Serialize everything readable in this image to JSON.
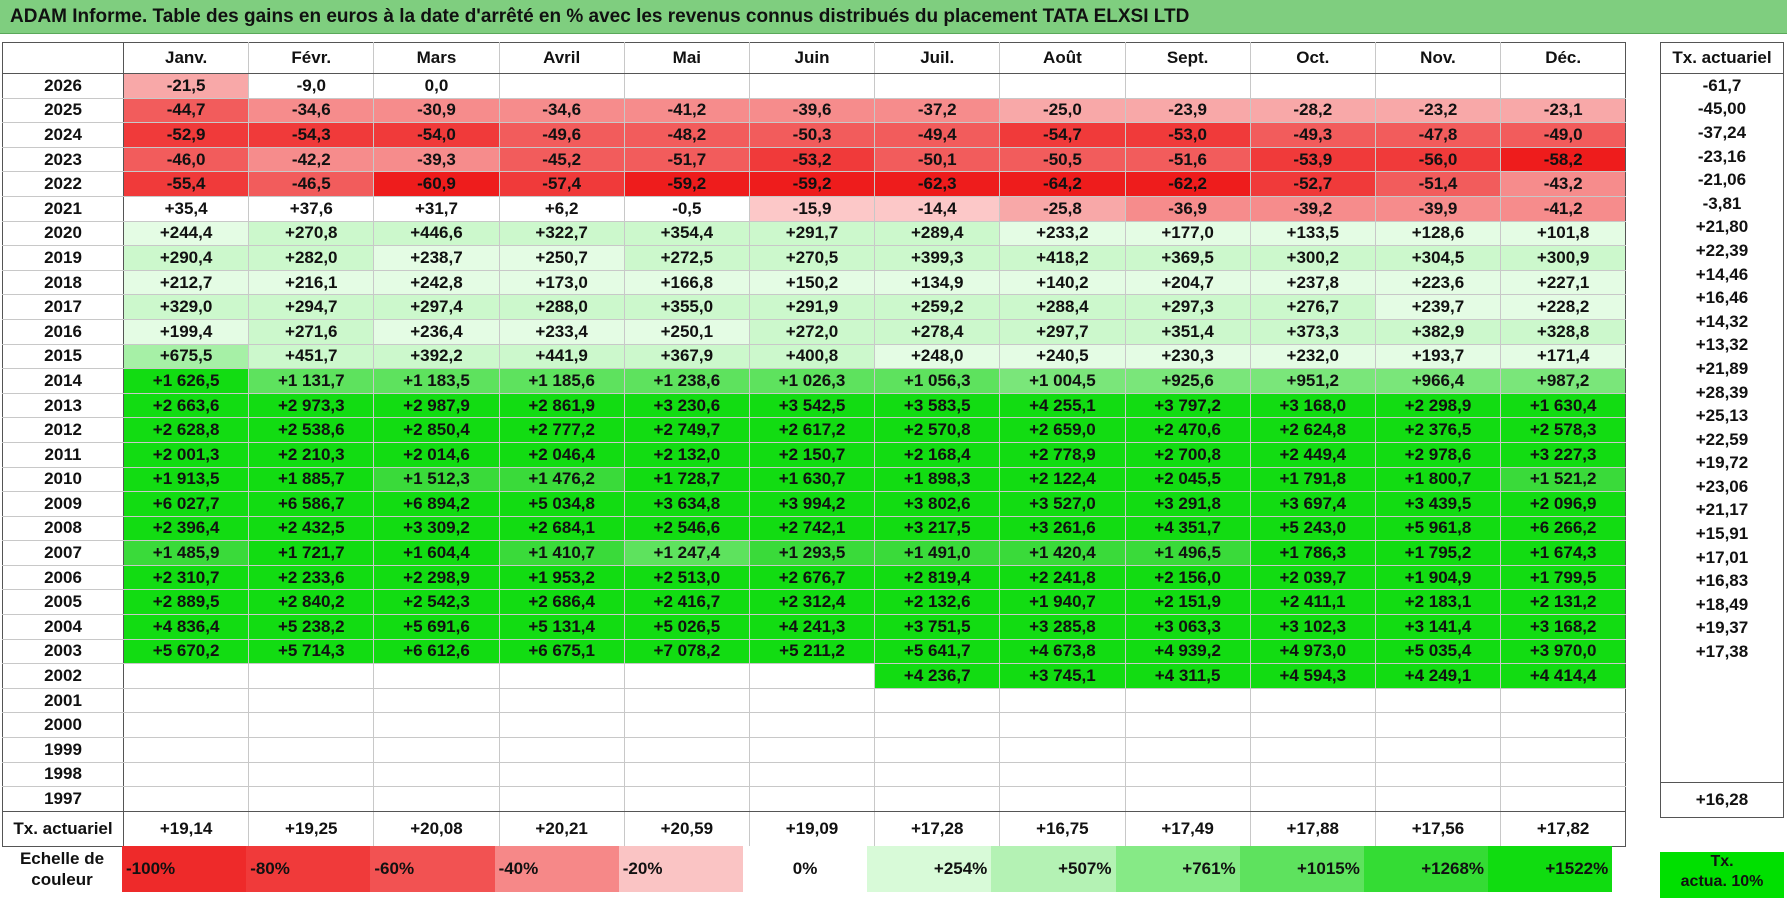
{
  "title": "ADAM Informe. Table des gains en euros à la date d'arrêté en % avec les revenus connus distribués du placement TATA ELXSI LTD",
  "months": [
    "Janv.",
    "Févr.",
    "Mars",
    "Avril",
    "Mai",
    "Juin",
    "Juil.",
    "Août",
    "Sept.",
    "Oct.",
    "Nov.",
    "Déc."
  ],
  "side_header": "Tx. actuariel",
  "rows": [
    {
      "year": "2026",
      "values": [
        "-21,5",
        "-9,0",
        "0,0",
        "",
        "",
        "",
        "",
        "",
        "",
        "",
        "",
        ""
      ],
      "tx": "-61,7"
    },
    {
      "year": "2025",
      "values": [
        "-44,7",
        "-34,6",
        "-30,9",
        "-34,6",
        "-41,2",
        "-39,6",
        "-37,2",
        "-25,0",
        "-23,9",
        "-28,2",
        "-23,2",
        "-23,1"
      ],
      "tx": "-45,00"
    },
    {
      "year": "2024",
      "values": [
        "-52,9",
        "-54,3",
        "-54,0",
        "-49,6",
        "-48,2",
        "-50,3",
        "-49,4",
        "-54,7",
        "-53,0",
        "-49,3",
        "-47,8",
        "-49,0"
      ],
      "tx": "-37,24"
    },
    {
      "year": "2023",
      "values": [
        "-46,0",
        "-42,2",
        "-39,3",
        "-45,2",
        "-51,7",
        "-53,2",
        "-50,1",
        "-50,5",
        "-51,6",
        "-53,9",
        "-56,0",
        "-58,2"
      ],
      "tx": "-23,16"
    },
    {
      "year": "2022",
      "values": [
        "-55,4",
        "-46,5",
        "-60,9",
        "-57,4",
        "-59,2",
        "-59,2",
        "-62,3",
        "-64,2",
        "-62,2",
        "-52,7",
        "-51,4",
        "-43,2"
      ],
      "tx": "-21,06"
    },
    {
      "year": "2021",
      "values": [
        "+35,4",
        "+37,6",
        "+31,7",
        "+6,2",
        "-0,5",
        "-15,9",
        "-14,4",
        "-25,8",
        "-36,9",
        "-39,2",
        "-39,9",
        "-41,2"
      ],
      "tx": "-3,81"
    },
    {
      "year": "2020",
      "values": [
        "+244,4",
        "+270,8",
        "+446,6",
        "+322,7",
        "+354,4",
        "+291,7",
        "+289,4",
        "+233,2",
        "+177,0",
        "+133,5",
        "+128,6",
        "+101,8"
      ],
      "tx": "+21,80"
    },
    {
      "year": "2019",
      "values": [
        "+290,4",
        "+282,0",
        "+238,7",
        "+250,7",
        "+272,5",
        "+270,5",
        "+399,3",
        "+418,2",
        "+369,5",
        "+300,2",
        "+304,5",
        "+300,9"
      ],
      "tx": "+22,39"
    },
    {
      "year": "2018",
      "values": [
        "+212,7",
        "+216,1",
        "+242,8",
        "+173,0",
        "+166,8",
        "+150,2",
        "+134,9",
        "+140,2",
        "+204,7",
        "+237,8",
        "+223,6",
        "+227,1"
      ],
      "tx": "+14,46"
    },
    {
      "year": "2017",
      "values": [
        "+329,0",
        "+294,7",
        "+297,4",
        "+288,0",
        "+355,0",
        "+291,9",
        "+259,2",
        "+288,4",
        "+297,3",
        "+276,7",
        "+239,7",
        "+228,2"
      ],
      "tx": "+16,46"
    },
    {
      "year": "2016",
      "values": [
        "+199,4",
        "+271,6",
        "+236,4",
        "+233,4",
        "+250,1",
        "+272,0",
        "+278,4",
        "+297,7",
        "+351,4",
        "+373,3",
        "+382,9",
        "+328,8"
      ],
      "tx": "+14,32"
    },
    {
      "year": "2015",
      "values": [
        "+675,5",
        "+451,7",
        "+392,2",
        "+441,9",
        "+367,9",
        "+400,8",
        "+248,0",
        "+240,5",
        "+230,3",
        "+232,0",
        "+193,7",
        "+171,4"
      ],
      "tx": "+13,32"
    },
    {
      "year": "2014",
      "values": [
        "+1 626,5",
        "+1 131,7",
        "+1 183,5",
        "+1 185,6",
        "+1 238,6",
        "+1 026,3",
        "+1 056,3",
        "+1 004,5",
        "+925,6",
        "+951,2",
        "+966,4",
        "+987,2"
      ],
      "tx": "+21,89"
    },
    {
      "year": "2013",
      "values": [
        "+2 663,6",
        "+2 973,3",
        "+2 987,9",
        "+2 861,9",
        "+3 230,6",
        "+3 542,5",
        "+3 583,5",
        "+4 255,1",
        "+3 797,2",
        "+3 168,0",
        "+2 298,9",
        "+1 630,4"
      ],
      "tx": "+28,39"
    },
    {
      "year": "2012",
      "values": [
        "+2 628,8",
        "+2 538,6",
        "+2 850,4",
        "+2 777,2",
        "+2 749,7",
        "+2 617,2",
        "+2 570,8",
        "+2 659,0",
        "+2 470,6",
        "+2 624,8",
        "+2 376,5",
        "+2 578,3"
      ],
      "tx": "+25,13"
    },
    {
      "year": "2011",
      "values": [
        "+2 001,3",
        "+2 210,3",
        "+2 014,6",
        "+2 046,4",
        "+2 132,0",
        "+2 150,7",
        "+2 168,4",
        "+2 778,9",
        "+2 700,8",
        "+2 449,4",
        "+2 978,6",
        "+3 227,3"
      ],
      "tx": "+22,59"
    },
    {
      "year": "2010",
      "values": [
        "+1 913,5",
        "+1 885,7",
        "+1 512,3",
        "+1 476,2",
        "+1 728,7",
        "+1 630,7",
        "+1 898,3",
        "+2 122,4",
        "+2 045,5",
        "+1 791,8",
        "+1 800,7",
        "+1 521,2"
      ],
      "tx": "+19,72"
    },
    {
      "year": "2009",
      "values": [
        "+6 027,7",
        "+6 586,7",
        "+6 894,2",
        "+5 034,8",
        "+3 634,8",
        "+3 994,2",
        "+3 802,6",
        "+3 527,0",
        "+3 291,8",
        "+3 697,4",
        "+3 439,5",
        "+2 096,9"
      ],
      "tx": "+23,06"
    },
    {
      "year": "2008",
      "values": [
        "+2 396,4",
        "+2 432,5",
        "+3 309,2",
        "+2 684,1",
        "+2 546,6",
        "+2 742,1",
        "+3 217,5",
        "+3 261,6",
        "+4 351,7",
        "+5 243,0",
        "+5 961,8",
        "+6 266,2"
      ],
      "tx": "+21,17"
    },
    {
      "year": "2007",
      "values": [
        "+1 485,9",
        "+1 721,7",
        "+1 604,4",
        "+1 410,7",
        "+1 247,4",
        "+1 293,5",
        "+1 491,0",
        "+1 420,4",
        "+1 496,5",
        "+1 786,3",
        "+1 795,2",
        "+1 674,3"
      ],
      "tx": "+15,91"
    },
    {
      "year": "2006",
      "values": [
        "+2 310,7",
        "+2 233,6",
        "+2 298,9",
        "+1 953,2",
        "+2 513,0",
        "+2 676,7",
        "+2 819,4",
        "+2 241,8",
        "+2 156,0",
        "+2 039,7",
        "+1 904,9",
        "+1 799,5"
      ],
      "tx": "+17,01"
    },
    {
      "year": "2005",
      "values": [
        "+2 889,5",
        "+2 840,2",
        "+2 542,3",
        "+2 686,4",
        "+2 416,7",
        "+2 312,4",
        "+2 132,6",
        "+1 940,7",
        "+2 151,9",
        "+2 411,1",
        "+2 183,1",
        "+2 131,2"
      ],
      "tx": "+16,83"
    },
    {
      "year": "2004",
      "values": [
        "+4 836,4",
        "+5 238,2",
        "+5 691,6",
        "+5 131,4",
        "+5 026,5",
        "+4 241,3",
        "+3 751,5",
        "+3 285,8",
        "+3 063,3",
        "+3 102,3",
        "+3 141,4",
        "+3 168,2"
      ],
      "tx": "+18,49"
    },
    {
      "year": "2003",
      "values": [
        "+5 670,2",
        "+5 714,3",
        "+6 612,6",
        "+6 675,1",
        "+7 078,2",
        "+5 211,2",
        "+5 641,7",
        "+4 673,8",
        "+4 939,2",
        "+4 973,0",
        "+5 035,4",
        "+3 970,0"
      ],
      "tx": "+19,37"
    },
    {
      "year": "2002",
      "values": [
        "",
        "",
        "",
        "",
        "",
        "",
        "+4 236,7",
        "+3 745,1",
        "+4 311,5",
        "+4 594,3",
        "+4 249,1",
        "+4 414,4"
      ],
      "tx": "+17,38"
    },
    {
      "year": "2001",
      "values": [
        "",
        "",
        "",
        "",
        "",
        "",
        "",
        "",
        "",
        "",
        "",
        ""
      ],
      "tx": ""
    },
    {
      "year": "2000",
      "values": [
        "",
        "",
        "",
        "",
        "",
        "",
        "",
        "",
        "",
        "",
        "",
        ""
      ],
      "tx": ""
    },
    {
      "year": "1999",
      "values": [
        "",
        "",
        "",
        "",
        "",
        "",
        "",
        "",
        "",
        "",
        "",
        ""
      ],
      "tx": ""
    },
    {
      "year": "1998",
      "values": [
        "",
        "",
        "",
        "",
        "",
        "",
        "",
        "",
        "",
        "",
        "",
        ""
      ],
      "tx": ""
    },
    {
      "year": "1997",
      "values": [
        "",
        "",
        "",
        "",
        "",
        "",
        "",
        "",
        "",
        "",
        "",
        ""
      ],
      "tx": ""
    }
  ],
  "footer": {
    "label": "Tx. actuariel",
    "values": [
      "+19,14",
      "+19,25",
      "+20,08",
      "+20,21",
      "+20,59",
      "+19,09",
      "+17,28",
      "+16,75",
      "+17,49",
      "+17,88",
      "+17,56",
      "+17,82"
    ],
    "tx": "+16,28"
  },
  "scale": {
    "label_line1": "Echelle de",
    "label_line2": "couleur",
    "items": [
      {
        "text": "-100%",
        "color": "#ee2a2a",
        "kind": "neg"
      },
      {
        "text": "-80%",
        "color": "#f03a3a",
        "kind": "neg"
      },
      {
        "text": "-60%",
        "color": "#f25252",
        "kind": "neg"
      },
      {
        "text": "-40%",
        "color": "#f68888",
        "kind": "neg"
      },
      {
        "text": "-20%",
        "color": "#fac4c4",
        "kind": "neg"
      },
      {
        "text": "0%",
        "color": "#ffffff",
        "kind": "zero"
      },
      {
        "text": "+254%",
        "color": "#d8fad8",
        "kind": "pos"
      },
      {
        "text": "+507%",
        "color": "#b4f2b4",
        "kind": "pos"
      },
      {
        "text": "+761%",
        "color": "#86ea86",
        "kind": "pos"
      },
      {
        "text": "+1015%",
        "color": "#5ee25e",
        "kind": "pos"
      },
      {
        "text": "+1268%",
        "color": "#34dc34",
        "kind": "pos"
      },
      {
        "text": "+1522%",
        "color": "#10dc10",
        "kind": "pos"
      }
    ],
    "side_line1": "Tx.",
    "side_line2": "actua. 10%",
    "side_color": "#00e000"
  }
}
